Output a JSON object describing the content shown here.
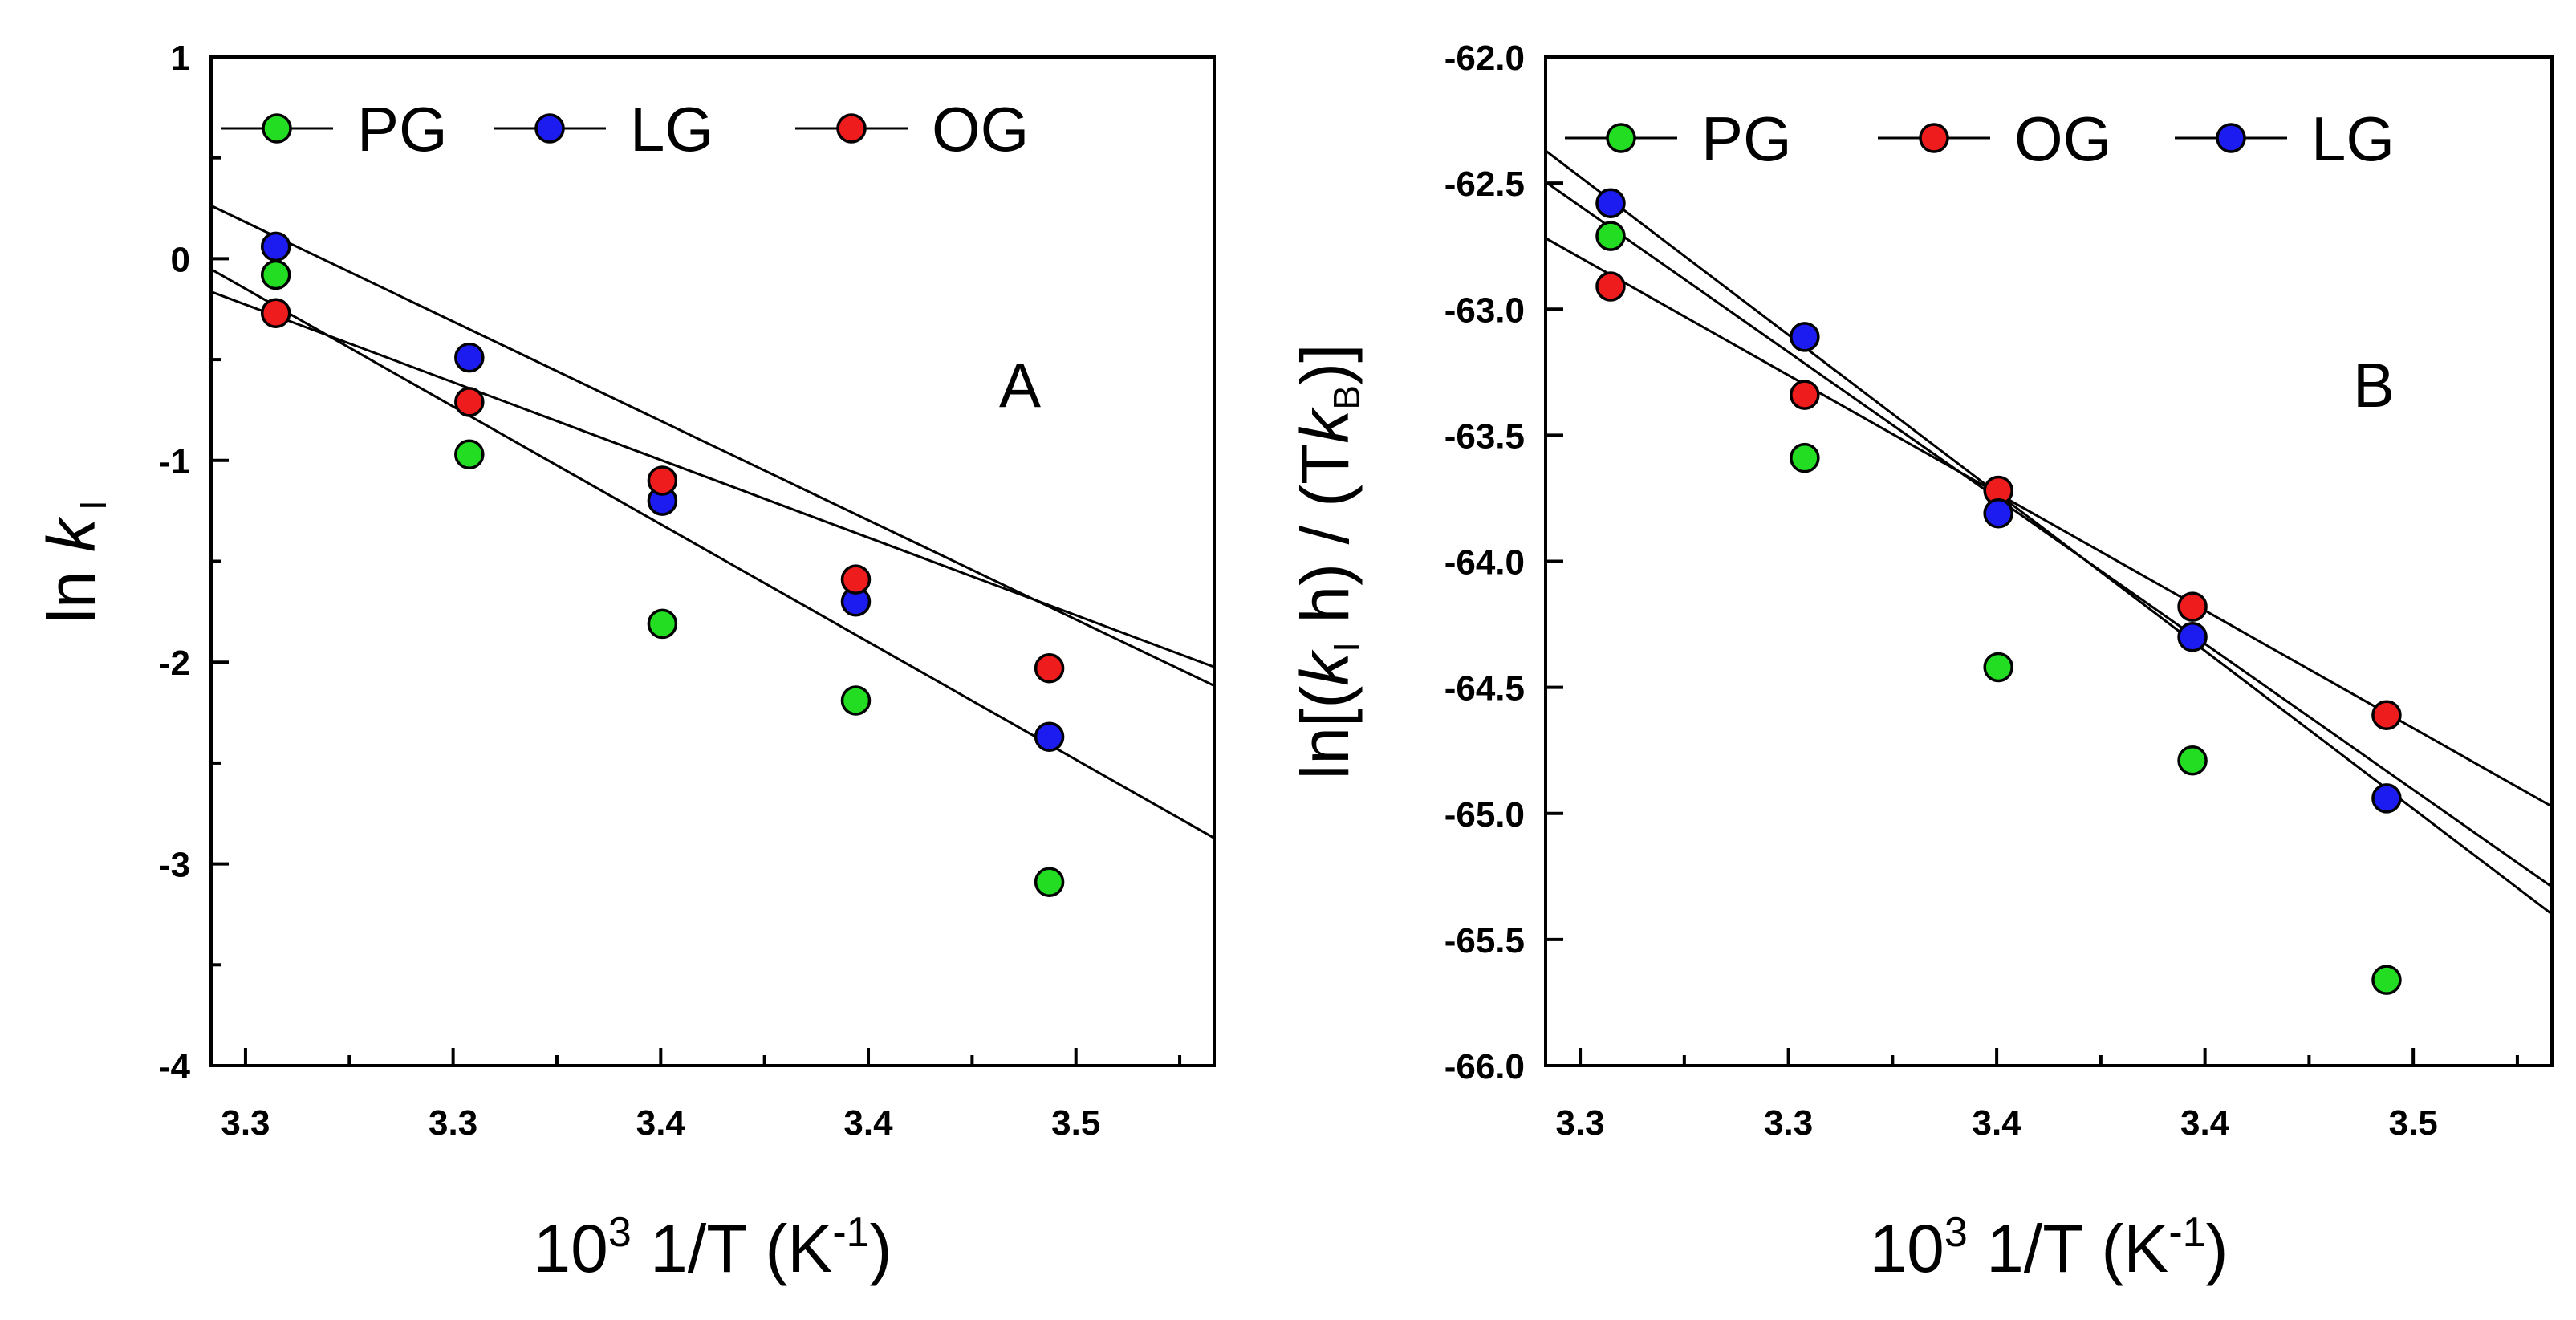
{
  "chart_data": [
    {
      "type": "scatter",
      "panel_label": "A",
      "ylabel_prefix": "ln ",
      "ylabel_symbol": "k",
      "ylabel_sub": "I",
      "xlabel_base": "10",
      "xlabel_sup": "3",
      "xlabel_mid": " 1/T (K",
      "xlabel_sup2": "-1",
      "xlabel_end": ")",
      "xlim": [
        3.2667,
        3.5083
      ],
      "ylim": [
        -4,
        1
      ],
      "x_ticks": [
        3.275,
        3.325,
        3.375,
        3.425,
        3.475
      ],
      "x_tick_labels": [
        "3.3",
        "3.3",
        "3.4",
        "3.4",
        "3.5"
      ],
      "y_ticks": [
        1,
        0,
        -1,
        -2,
        -3,
        -4
      ],
      "y_tick_labels": [
        "1",
        "0",
        "-1",
        "-2",
        "-3",
        "-4"
      ],
      "x": [
        3.2823,
        3.3289,
        3.3754,
        3.422,
        3.4686
      ],
      "series": [
        {
          "name": "PG",
          "color": "#22dd22",
          "values": [
            -0.08,
            -0.97,
            -1.81,
            -2.19,
            -3.09
          ],
          "fit_intercept": 38.07,
          "fit_slope": -11.67
        },
        {
          "name": "LG",
          "color": "#1c1cf0",
          "values": [
            0.06,
            -0.49,
            -1.2,
            -1.7,
            -2.37
          ],
          "fit_intercept": 32.44,
          "fit_slope": -9.85
        },
        {
          "name": "OG",
          "color": "#ee1c1c",
          "values": [
            -0.27,
            -0.71,
            -1.1,
            -1.59,
            -2.03
          ],
          "fit_intercept": 24.99,
          "fit_slope": -7.7
        }
      ],
      "legend_order": [
        "PG",
        "LG",
        "OG"
      ],
      "legend": "top"
    },
    {
      "type": "scatter",
      "panel_label": "B",
      "ylabel_prefix": "ln[(",
      "ylabel_symbol": "k",
      "ylabel_sub": "I",
      "ylabel_mid": " h) / (T",
      "ylabel_symbol2": "k",
      "ylabel_sub2": "B",
      "ylabel_end": ")]",
      "xlabel_base": "10",
      "xlabel_sup": "3",
      "xlabel_mid": " 1/T (K",
      "xlabel_sup2": "-1",
      "xlabel_end": ")",
      "xlim": [
        3.2667,
        3.5083
      ],
      "ylim": [
        -66,
        -62
      ],
      "x_ticks": [
        3.275,
        3.325,
        3.375,
        3.425,
        3.475
      ],
      "x_tick_labels": [
        "3.3",
        "3.3",
        "3.4",
        "3.4",
        "3.5"
      ],
      "y_ticks": [
        -62.0,
        -62.5,
        -63.0,
        -63.5,
        -64.0,
        -64.5,
        -65.0,
        -65.5,
        -66.0
      ],
      "y_tick_labels": [
        "-62.0",
        "-62.5",
        "-63.0",
        "-63.5",
        "-64.0",
        "-64.5",
        "-65.0",
        "-65.5",
        "-66.0"
      ],
      "x": [
        3.2823,
        3.3289,
        3.3754,
        3.422,
        3.4686
      ],
      "series": [
        {
          "name": "PG",
          "color": "#22dd22",
          "values": [
            -62.71,
            -63.59,
            -64.42,
            -64.79,
            -65.66
          ],
          "fit_intercept": -24.7,
          "fit_slope": -11.57
        },
        {
          "name": "OG",
          "color": "#ee1c1c",
          "values": [
            -62.91,
            -63.34,
            -63.72,
            -64.18,
            -64.61
          ],
          "fit_intercept": -32.24,
          "fit_slope": -9.33
        },
        {
          "name": "LG",
          "color": "#1c1cf0",
          "values": [
            -62.58,
            -63.11,
            -63.81,
            -64.3,
            -64.94
          ],
          "fit_intercept": -21.44,
          "fit_slope": -12.53
        }
      ],
      "legend_order": [
        "PG",
        "OG",
        "LG"
      ],
      "legend": "top"
    }
  ]
}
